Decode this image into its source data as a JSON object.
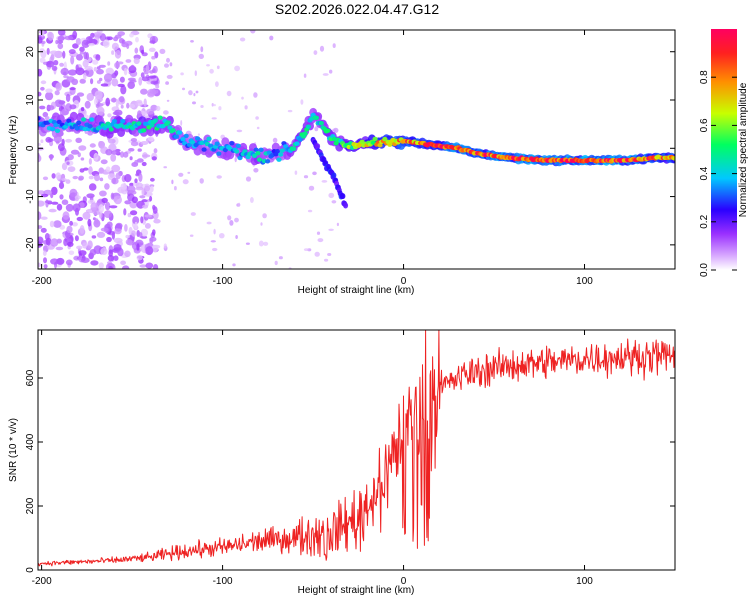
{
  "title": "S202.2026.022.04.47.G12",
  "chart_data": [
    {
      "type": "heatmap",
      "xlabel": "Height of straight line (km)",
      "ylabel": "Frequency (Hz)",
      "xlim": [
        -202,
        150
      ],
      "ylim": [
        -25,
        24.5
      ],
      "xticks": [
        -200,
        -100,
        0,
        100
      ],
      "yticks": [
        -20,
        -10,
        0,
        10,
        20
      ],
      "colorbar": {
        "label": "Normalized spectral amplitude",
        "range": [
          0.0,
          1.0
        ],
        "ticks": [
          0.0,
          0.2,
          0.4,
          0.6,
          0.8
        ],
        "colors": [
          "#ffffff",
          "#c04cff",
          "#2a00ff",
          "#00c8ff",
          "#00ff60",
          "#e0ff00",
          "#ff8000",
          "#ff0040"
        ]
      },
      "ridge": {
        "x": [
          -202,
          -180,
          -160,
          -140,
          -130,
          -120,
          -110,
          -100,
          -90,
          -80,
          -70,
          -62,
          -55,
          -50,
          -45,
          -40,
          -35,
          -30,
          -20,
          -10,
          0,
          10,
          20,
          30,
          40,
          50,
          60,
          80,
          100,
          120,
          140,
          150
        ],
        "y": [
          5,
          5,
          4.5,
          5,
          4.5,
          1,
          0.5,
          0,
          -0.5,
          -1.5,
          -1,
          0,
          3,
          7,
          5,
          2,
          1,
          0.5,
          1,
          1.5,
          1.5,
          1,
          0.5,
          0,
          -1,
          -1.5,
          -2,
          -2.5,
          -2.5,
          -2.5,
          -2,
          -2
        ]
      },
      "ridge_amplitude": [
        0.35,
        0.4,
        0.45,
        0.5,
        0.45,
        0.4,
        0.4,
        0.4,
        0.4,
        0.45,
        0.35,
        0.45,
        0.5,
        0.45,
        0.45,
        0.5,
        0.55,
        0.6,
        0.7,
        0.8,
        0.85,
        0.9,
        0.92,
        0.95,
        0.95,
        0.97,
        1.0,
        1.0,
        1.0,
        1.0,
        0.9,
        0.85
      ],
      "branch": {
        "x": [
          -50,
          -45,
          -40,
          -35,
          -32
        ],
        "y": [
          2,
          -2,
          -5,
          -9,
          -12
        ]
      }
    },
    {
      "type": "line",
      "xlabel": "Height of straight line (km)",
      "ylabel": "SNR (10 * v/v)",
      "xlim": [
        -202,
        150
      ],
      "ylim": [
        0,
        750
      ],
      "xticks": [
        -200,
        -100,
        0,
        100
      ],
      "yticks": [
        0,
        200,
        400,
        600
      ],
      "color": "#ee2222",
      "trend": {
        "x": [
          -202,
          -180,
          -160,
          -140,
          -120,
          -100,
          -80,
          -60,
          -40,
          -30,
          -25,
          -20,
          -15,
          -10,
          -5,
          0,
          10,
          20,
          30,
          40,
          60,
          80,
          100,
          120,
          140,
          150
        ],
        "y": [
          20,
          25,
          30,
          40,
          60,
          70,
          90,
          100,
          120,
          150,
          170,
          200,
          250,
          300,
          370,
          430,
          520,
          570,
          600,
          620,
          640,
          650,
          660,
          665,
          670,
          670
        ]
      }
    }
  ]
}
